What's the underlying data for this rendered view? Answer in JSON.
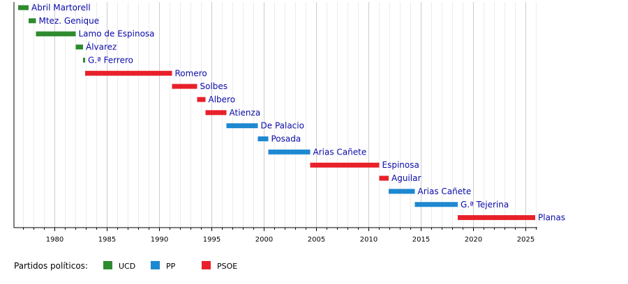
{
  "chart_data": {
    "type": "gantt",
    "x_axis": {
      "min": 1976.1,
      "max": 2026.1,
      "ticks": [
        1980,
        1985,
        1990,
        1995,
        2000,
        2005,
        2010,
        2015,
        2020,
        2025
      ]
    },
    "grid": true,
    "bars": [
      {
        "label": "Abril Martorell",
        "start": 1976.5,
        "end": 1977.5,
        "party": "UCD"
      },
      {
        "label": "Mtez. Genique",
        "start": 1977.5,
        "end": 1978.2,
        "party": "UCD"
      },
      {
        "label": "Lamo de Espinosa",
        "start": 1978.2,
        "end": 1982.0,
        "party": "UCD"
      },
      {
        "label": "Álvarez",
        "start": 1982.0,
        "end": 1982.7,
        "party": "UCD"
      },
      {
        "label": "G.ª Ferrero",
        "start": 1982.7,
        "end": 1982.9,
        "party": "UCD"
      },
      {
        "label": "Romero",
        "start": 1982.9,
        "end": 1991.2,
        "party": "PSOE"
      },
      {
        "label": "Solbes",
        "start": 1991.2,
        "end": 1993.6,
        "party": "PSOE"
      },
      {
        "label": "Albero",
        "start": 1993.6,
        "end": 1994.4,
        "party": "PSOE"
      },
      {
        "label": "Atienza",
        "start": 1994.4,
        "end": 1996.4,
        "party": "PSOE"
      },
      {
        "label": "De Palacio",
        "start": 1996.4,
        "end": 1999.4,
        "party": "PP"
      },
      {
        "label": "Posada",
        "start": 1999.4,
        "end": 2000.4,
        "party": "PP"
      },
      {
        "label": "Arias Cañete",
        "start": 2000.4,
        "end": 2004.4,
        "party": "PP"
      },
      {
        "label": "Espinosa",
        "start": 2004.4,
        "end": 2011.0,
        "party": "PSOE"
      },
      {
        "label": "Aguilar",
        "start": 2011.0,
        "end": 2011.9,
        "party": "PSOE"
      },
      {
        "label": "Arias Cañete",
        "start": 2011.9,
        "end": 2014.4,
        "party": "PP"
      },
      {
        "label": "G.ª Tejerina",
        "start": 2014.4,
        "end": 2018.5,
        "party": "PP"
      },
      {
        "label": "Planas",
        "start": 2018.5,
        "end": 2025.9,
        "party": "PSOE"
      }
    ],
    "legend": {
      "title": "Partidos políticos:",
      "placement": "bottom-left",
      "items": [
        {
          "party": "UCD",
          "label": "UCD",
          "color": "#2e8b2e"
        },
        {
          "party": "PP",
          "label": "PP",
          "color": "#1e88d0"
        },
        {
          "party": "PSOE",
          "label": "PSOE",
          "color": "#e8202a"
        }
      ]
    }
  }
}
